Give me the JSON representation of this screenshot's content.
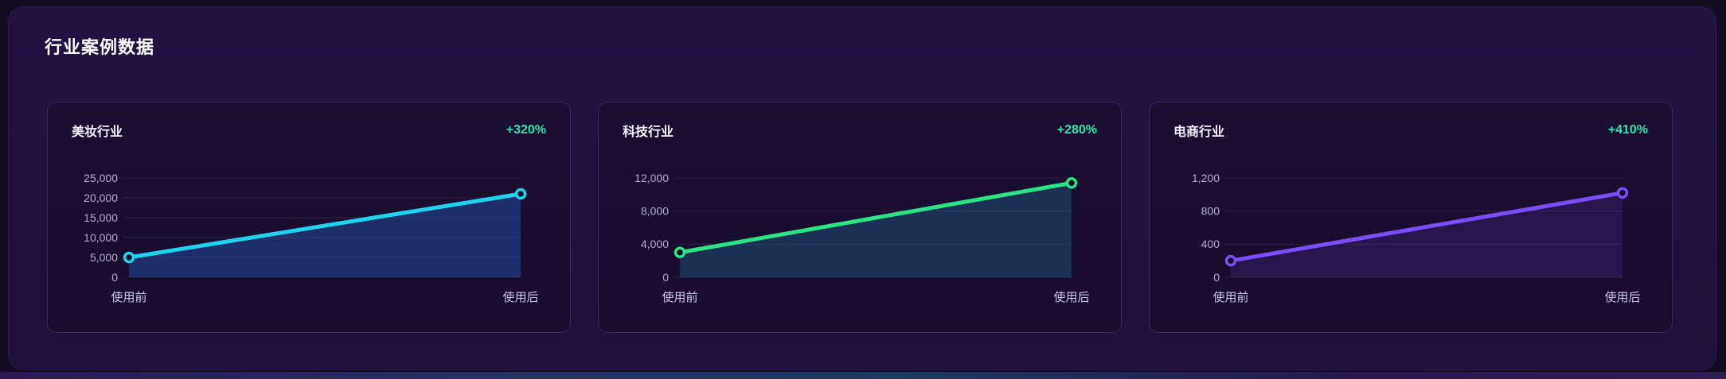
{
  "page": {
    "background": "#130b22",
    "panel_background": "#201138",
    "section_title": "行业案例数据"
  },
  "badge_color": "#2ee6a8",
  "chart_data": [
    {
      "type": "line",
      "title": "美妆行业",
      "badge": "+320%",
      "categories": [
        "使用前",
        "使用后"
      ],
      "values": [
        5000,
        21000
      ],
      "yticks": [
        25000,
        20000,
        15000,
        10000,
        5000,
        0
      ],
      "ylim": [
        0,
        25000
      ],
      "xlabel": "",
      "ylabel": "",
      "grid": true,
      "legend": "none",
      "line_color": "#1fd4f0",
      "fill_color": "rgba(40,110,220,0.35)"
    },
    {
      "type": "line",
      "title": "科技行业",
      "badge": "+280%",
      "categories": [
        "使用前",
        "使用后"
      ],
      "values": [
        3000,
        11400
      ],
      "yticks": [
        12000,
        8000,
        4000,
        0
      ],
      "ylim": [
        0,
        12000
      ],
      "xlabel": "",
      "ylabel": "",
      "grid": true,
      "legend": "none",
      "line_color": "#2be483",
      "fill_color": "rgba(35,140,180,0.28)"
    },
    {
      "type": "line",
      "title": "电商行业",
      "badge": "+410%",
      "categories": [
        "使用前",
        "使用后"
      ],
      "values": [
        200,
        1020
      ],
      "yticks": [
        1200,
        800,
        400,
        0
      ],
      "ylim": [
        0,
        1200
      ],
      "xlabel": "",
      "ylabel": "",
      "grid": true,
      "legend": "none",
      "line_color": "#7c4dff",
      "fill_color": "rgba(124,77,255,0.14)"
    }
  ]
}
